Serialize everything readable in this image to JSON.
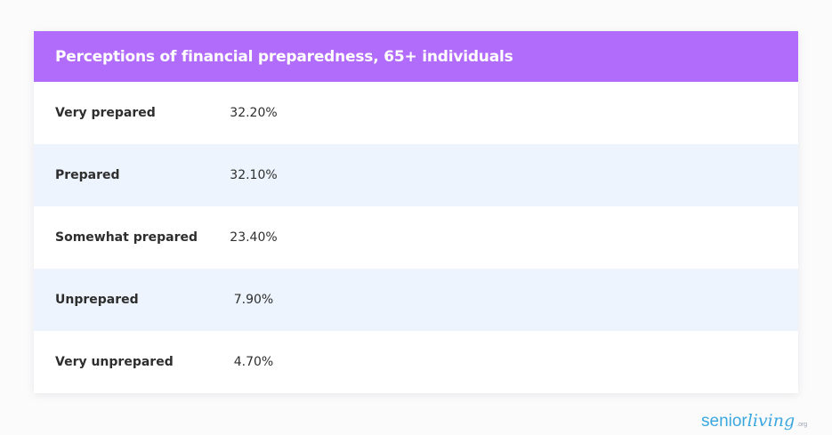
{
  "chart_data": {
    "type": "table",
    "title": "Perceptions of financial preparedness, 65+ individuals",
    "categories": [
      "Very prepared",
      "Prepared",
      "Somewhat prepared",
      "Unprepared",
      "Very unprepared"
    ],
    "values": [
      32.2,
      32.1,
      23.4,
      7.9,
      4.7
    ],
    "rows": [
      {
        "label": "Very prepared",
        "value": "32.20%"
      },
      {
        "label": "Prepared",
        "value": "32.10%"
      },
      {
        "label": "Somewhat prepared",
        "value": "23.40%"
      },
      {
        "label": "Unprepared",
        "value": "7.90%"
      },
      {
        "label": "Very unprepared",
        "value": "4.70%"
      }
    ]
  },
  "colors": {
    "header": "#b26cfb",
    "stripe": "#edf4fd",
    "brand": "#3ba7df"
  },
  "brand": {
    "senior": "senior",
    "living": "living",
    "org": ".org"
  }
}
